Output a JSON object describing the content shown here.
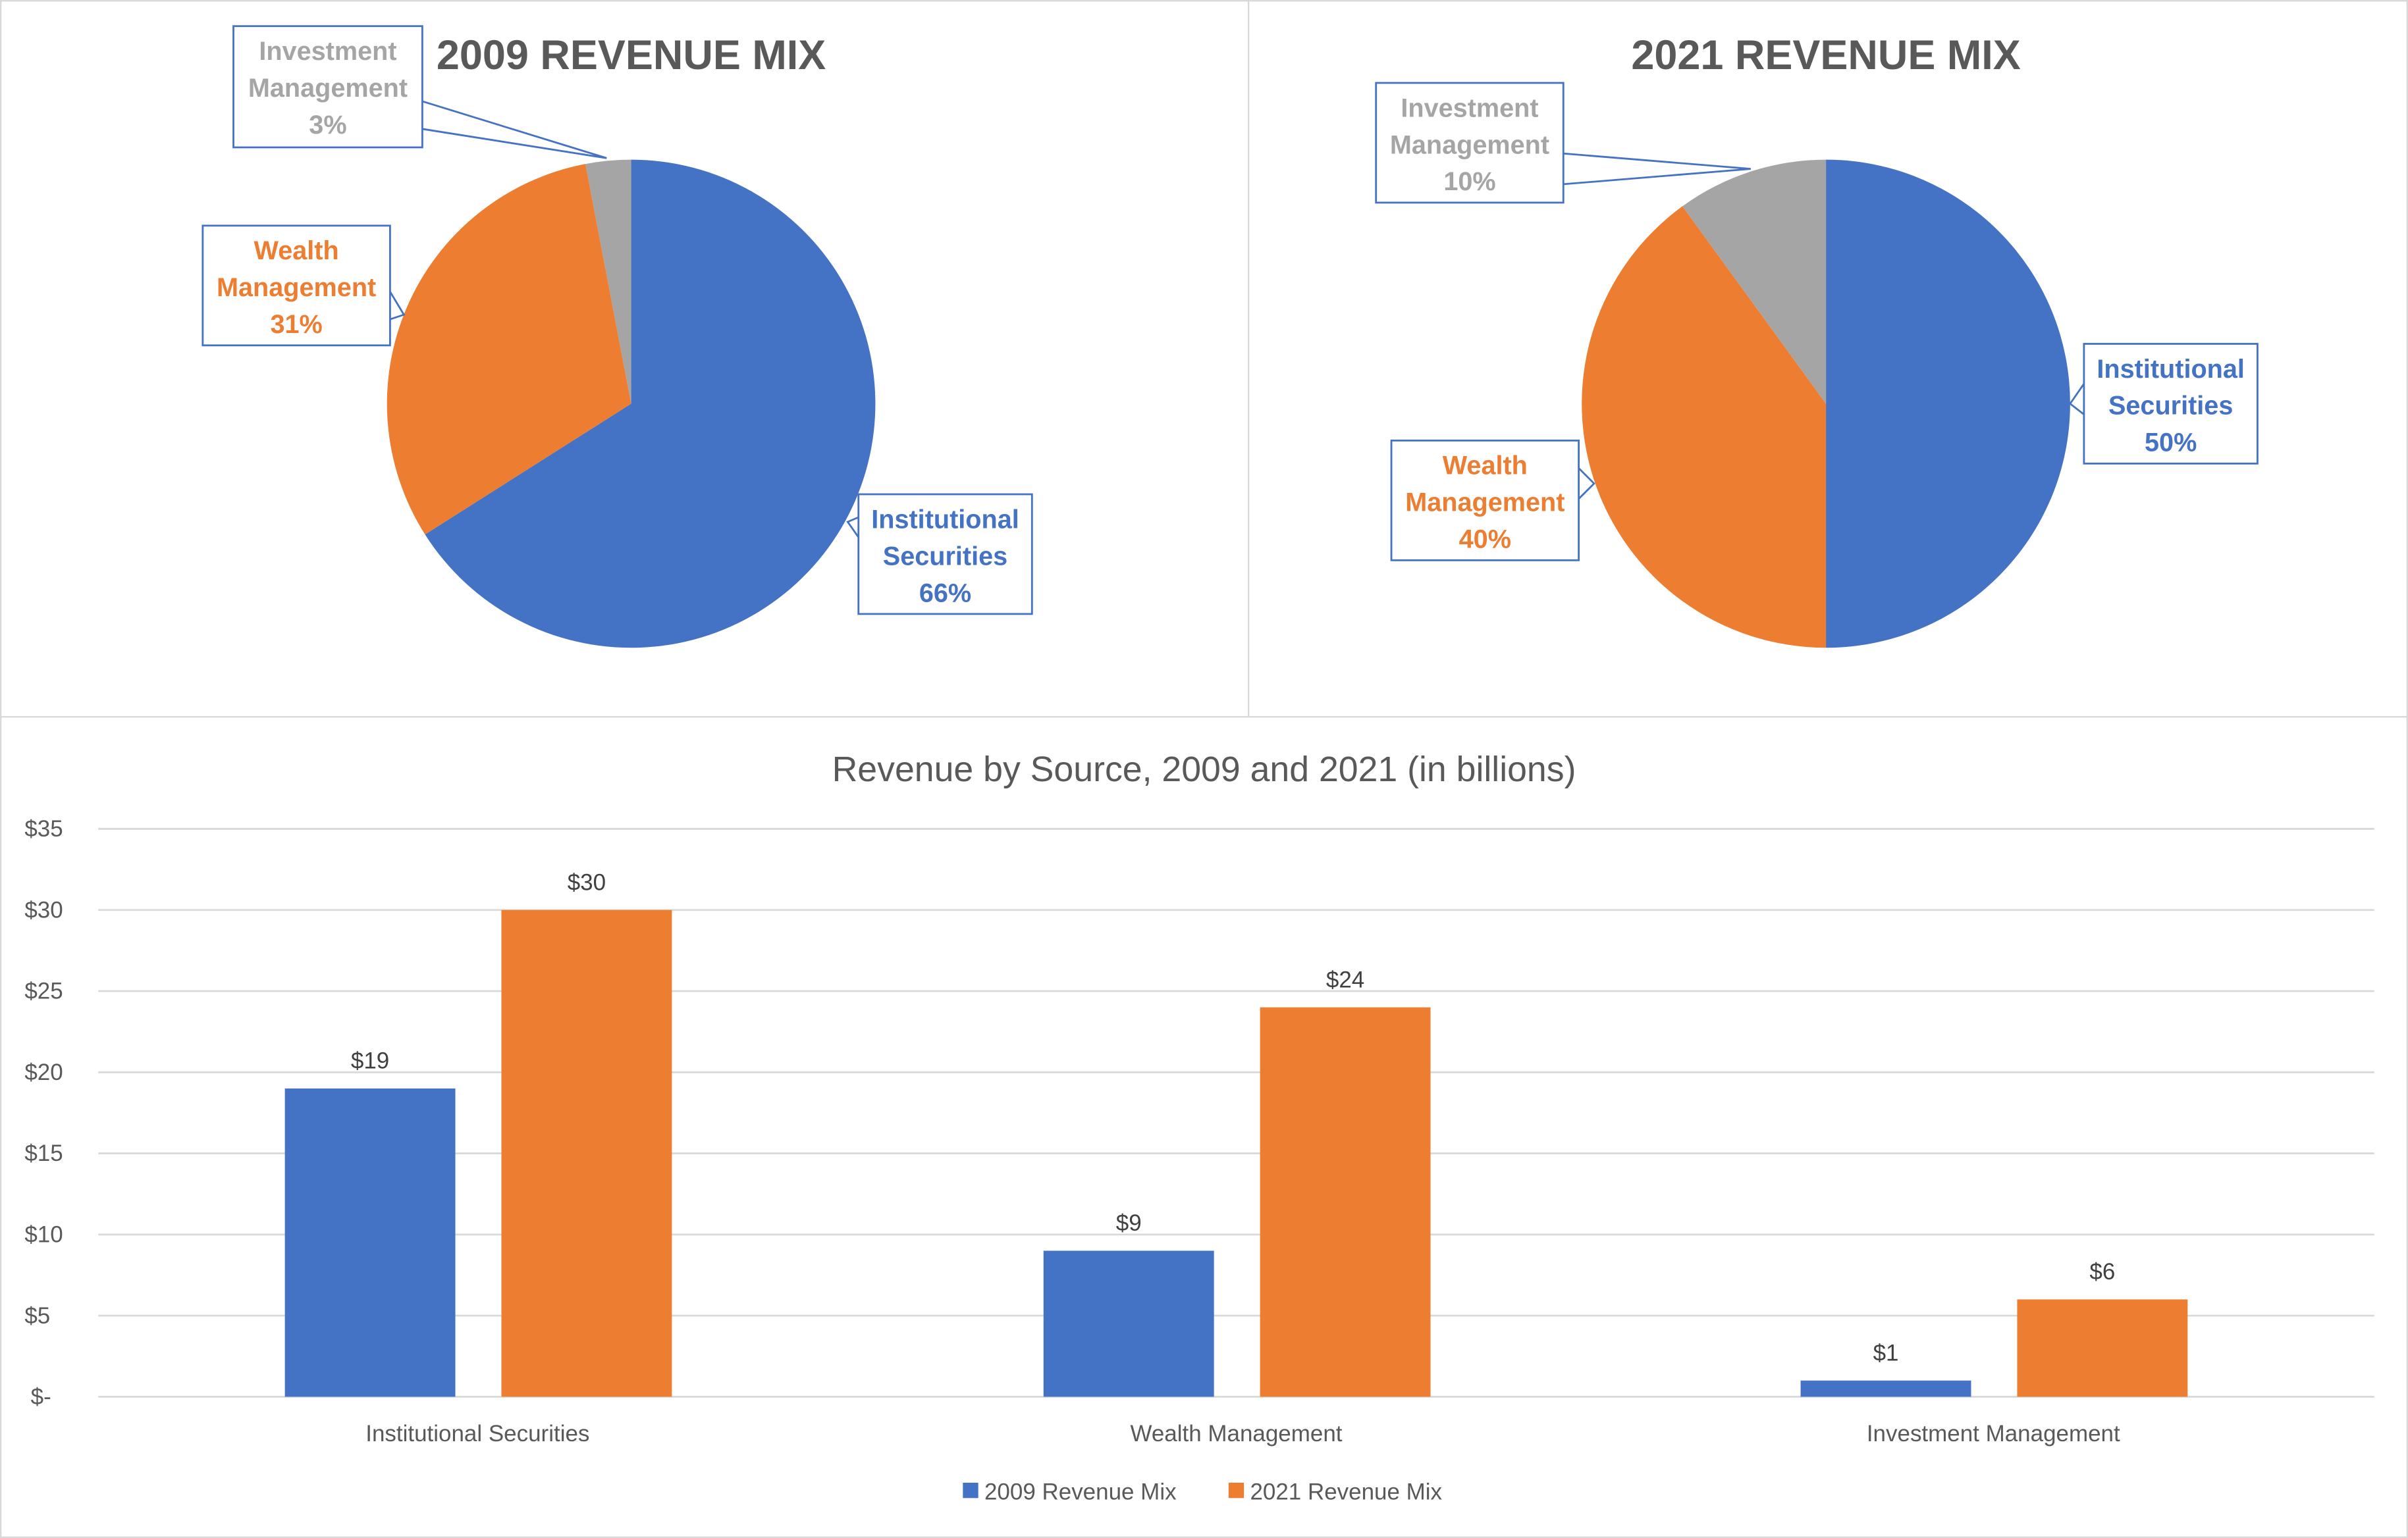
{
  "colors": {
    "institutional": "#4472c4",
    "wealth": "#ed7d31",
    "investment": "#a5a5a5"
  },
  "chart_data": [
    {
      "type": "pie",
      "title": "2009 REVENUE MIX",
      "slices": [
        {
          "name": "Institutional Securities",
          "lines": [
            "Institutional",
            "Securities"
          ],
          "value": 66,
          "label": "66%"
        },
        {
          "name": "Wealth Management",
          "lines": [
            "Wealth",
            "Management"
          ],
          "value": 31,
          "label": "31%"
        },
        {
          "name": "Investment Management",
          "lines": [
            "Investment",
            "Management"
          ],
          "value": 3,
          "label": "3%"
        }
      ]
    },
    {
      "type": "pie",
      "title": "2021 REVENUE MIX",
      "slices": [
        {
          "name": "Institutional Securities",
          "lines": [
            "Institutional",
            "Securities"
          ],
          "value": 50,
          "label": "50%"
        },
        {
          "name": "Wealth Management",
          "lines": [
            "Wealth",
            "Management"
          ],
          "value": 40,
          "label": "40%"
        },
        {
          "name": "Investment Management",
          "lines": [
            "Investment",
            "Management"
          ],
          "value": 10,
          "label": "10%"
        }
      ]
    },
    {
      "type": "bar",
      "title": "Revenue by Source, 2009 and 2021 (in billions)",
      "categories": [
        "Institutional Securities",
        "Wealth Management",
        "Investment Management"
      ],
      "series": [
        {
          "name": "2009 Revenue Mix",
          "values": [
            19,
            9,
            1
          ],
          "labels": [
            "$19",
            "$9",
            "$1"
          ]
        },
        {
          "name": "2021 Revenue Mix",
          "values": [
            30,
            24,
            6
          ],
          "labels": [
            "$30",
            "$24",
            "$6"
          ]
        }
      ],
      "ylim": [
        0,
        35
      ],
      "yticks": [
        0,
        5,
        10,
        15,
        20,
        25,
        30,
        35
      ],
      "ytick_labels": [
        "$-",
        "$5",
        "$10",
        "$15",
        "$20",
        "$25",
        "$30",
        "$35"
      ],
      "grid": true,
      "legend": "bottom"
    }
  ]
}
